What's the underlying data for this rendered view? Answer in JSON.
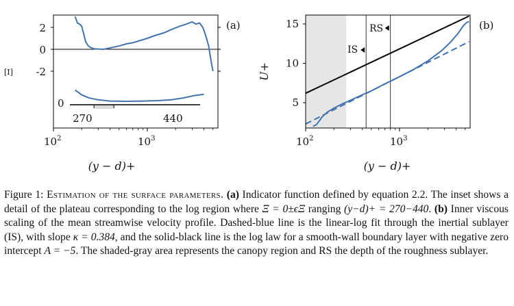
{
  "figure": {
    "panel_a": {
      "label": "(a)",
      "ylabel": "[I]",
      "xlabel": "(y − d)+",
      "xtick_labels": [
        "10",
        "2",
        "10",
        "3"
      ],
      "ytick_labels": [
        "2",
        "0",
        "-2"
      ],
      "inset": {
        "zero_label": "0",
        "low_label": "270",
        "high_label": "440"
      }
    },
    "panel_b": {
      "label": "(b)",
      "ylabel": "U+",
      "xlabel": "(y − d)+",
      "xtick_labels": [
        "10",
        "2",
        "10",
        "3"
      ],
      "ytick_labels": [
        "15",
        "10",
        "5"
      ],
      "is_label": "IS",
      "rs_label": "RS"
    }
  },
  "chart_data": [
    {
      "type": "line",
      "panel": "a",
      "x_scale": "log",
      "xlim": [
        100,
        5500
      ],
      "ylim": [
        -3.5,
        3
      ],
      "ylabel": "[I]",
      "xlabel": "(y − d)+",
      "grid": false,
      "series": [
        {
          "x": [
            170,
            180,
            190,
            200,
            210,
            220,
            235,
            250,
            270,
            300,
            340,
            390,
            440,
            500,
            600,
            700,
            800,
            1000,
            1200,
            1500,
            1800,
            2200,
            2600,
            3000,
            3300,
            3600,
            3900,
            4200,
            4500,
            4800,
            5000
          ],
          "y": [
            3.0,
            2.4,
            2.3,
            2.1,
            1.4,
            0.7,
            0.3,
            0.15,
            0.05,
            0.02,
            0.0,
            0.1,
            0.2,
            0.3,
            0.5,
            0.6,
            0.75,
            1.0,
            1.25,
            1.5,
            1.8,
            2.1,
            2.3,
            2.5,
            2.3,
            2.4,
            2.0,
            1.2,
            0.3,
            -1.2,
            -2.0
          ],
          "color": "#4273ae"
        }
      ],
      "hlines": [
        0
      ],
      "inset": {
        "shaded_range": [
          270,
          440
        ],
        "series_x": [
          170,
          200,
          240,
          300,
          400,
          600,
          900,
          1300,
          1800,
          2400,
          3200,
          4000
        ],
        "series_y": [
          1.2,
          0.8,
          0.55,
          0.4,
          0.3,
          0.28,
          0.3,
          0.33,
          0.4,
          0.55,
          0.75,
          0.85
        ]
      }
    },
    {
      "type": "line",
      "panel": "b",
      "x_scale": "log",
      "xlim": [
        100,
        5500
      ],
      "ylim": [
        2,
        16
      ],
      "ylabel": "U+",
      "xlabel": "(y − d)+",
      "grid": false,
      "shaded_range": [
        100,
        270
      ],
      "vlines": [
        440,
        800
      ],
      "series": [
        {
          "name": "",
          "style": "solid",
          "color": "#4273ae",
          "x": [
            120,
            130,
            140,
            150,
            170,
            200,
            250,
            300,
            400,
            500,
            700,
            1000,
            1400,
            2000,
            2800,
            3500,
            4200,
            4800,
            5200,
            5500
          ],
          "y": [
            2.0,
            2.2,
            2.7,
            3.2,
            3.8,
            4.3,
            4.9,
            5.3,
            6.0,
            6.5,
            7.4,
            8.3,
            9.2,
            10.3,
            11.6,
            12.7,
            13.8,
            14.8,
            15.2,
            15.3
          ]
        },
        {
          "name": "",
          "style": "dashed",
          "color": "#4273ae",
          "x": [
            100,
            5500
          ],
          "y": [
            2.3,
            12.75
          ]
        },
        {
          "name": "",
          "style": "solid",
          "color": "#000000",
          "x": [
            100,
            5500
          ],
          "y": [
            6.2,
            16.0
          ]
        }
      ]
    }
  ],
  "caption": {
    "fig_label": "Figure 1: ",
    "title": "Estimation of the surface parameters.",
    "a_label": "(a)",
    "a_text_1": " Indicator function defined by equation 2.2. The inset shows a detail of the plateau corresponding to the log region where ",
    "xi_expr": "Ξ = 0±ϵΞ",
    "a_text_2": " ranging ",
    "range_expr": "(y−d)+ = 270−440",
    "a_text_3": ". ",
    "b_label": "(b)",
    "b_text_1": " Inner viscous scaling of the mean streamwise velocity profile. Dashed-blue line is the linear-log fit through the inertial sublayer (IS), with slope ",
    "kappa_expr": "κ = 0.384",
    "b_text_2": ", and the solid-black line is the log law for a smooth-wall boundary layer with negative zero intercept ",
    "a_expr": "A = −5",
    "b_text_3": ". The shaded-gray area represents the canopy region and RS the depth of the roughness sublayer."
  }
}
